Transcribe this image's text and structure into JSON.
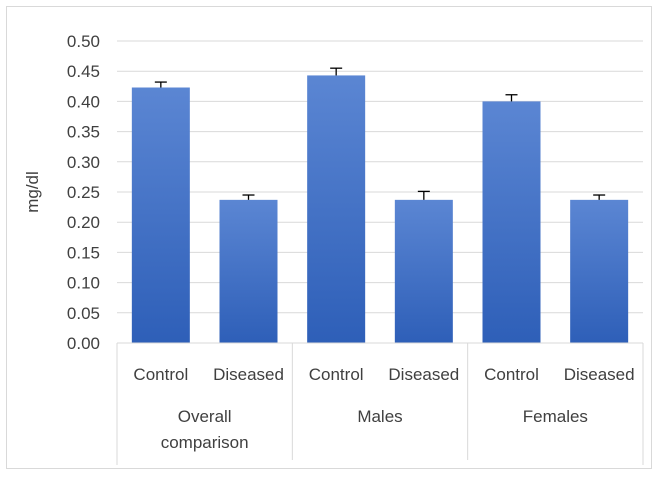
{
  "chart_data": {
    "type": "bar",
    "title": "",
    "xlabel": "",
    "ylabel": "mg/dl",
    "ylim": [
      0,
      0.5
    ],
    "yticks": [
      "0.00",
      "0.05",
      "0.10",
      "0.15",
      "0.20",
      "0.25",
      "0.30",
      "0.35",
      "0.40",
      "0.45",
      "0.50"
    ],
    "grid": true,
    "legend": "none",
    "bar_color": "#4472c4",
    "groups": [
      {
        "label": "Overall comparison",
        "label_lines": [
          "Overall",
          "comparison"
        ],
        "bars": [
          {
            "category": "Control",
            "value": 0.423,
            "error": 0.009
          },
          {
            "category": "Diseased",
            "value": 0.237,
            "error": 0.008
          }
        ]
      },
      {
        "label": "Males",
        "label_lines": [
          "Males"
        ],
        "bars": [
          {
            "category": "Control",
            "value": 0.443,
            "error": 0.012
          },
          {
            "category": "Diseased",
            "value": 0.237,
            "error": 0.014
          }
        ]
      },
      {
        "label": "Females",
        "label_lines": [
          "Females"
        ],
        "bars": [
          {
            "category": "Control",
            "value": 0.4,
            "error": 0.011
          },
          {
            "category": "Diseased",
            "value": 0.237,
            "error": 0.008
          }
        ]
      }
    ]
  }
}
